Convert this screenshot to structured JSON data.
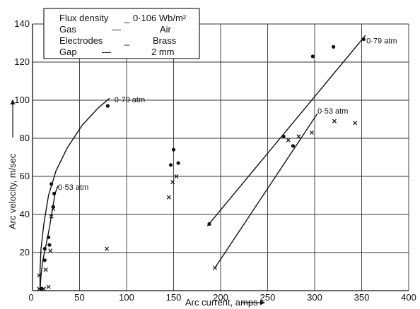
{
  "chart_data": {
    "type": "scatter",
    "xlabel": "Arc current, amps",
    "ylabel": "Arc velocity, m/sec",
    "xlim": [
      0,
      400
    ],
    "ylim": [
      0,
      140
    ],
    "xticks": [
      "0",
      "50",
      "100",
      "150",
      "200",
      "250",
      "300",
      "350",
      "400"
    ],
    "yticks": [
      "20",
      "40",
      "60",
      "80",
      "100",
      "120",
      "140"
    ],
    "grid": true,
    "legend_box": {
      "rows": [
        {
          "label": "Flux density",
          "sep": "_",
          "value": "0·106 Wb/m²"
        },
        {
          "label": "Gas",
          "sep": "—",
          "value": "Air"
        },
        {
          "label": "Electrodes",
          "sep": "_",
          "value": "Brass"
        },
        {
          "label": "Gap",
          "sep": "—",
          "value": "2 mm"
        }
      ]
    },
    "annotations": [
      {
        "text": "0·79 atm",
        "x": 87,
        "y": 100
      },
      {
        "text": "0·53 atm",
        "x": 27,
        "y": 54
      },
      {
        "text": "0·79 atm",
        "x": 355,
        "y": 131
      },
      {
        "text": "0·53 atm",
        "x": 303,
        "y": 94
      }
    ],
    "series": [
      {
        "marker": "dot",
        "points": [
          [
            10,
            1
          ],
          [
            13,
            16
          ],
          [
            13,
            22
          ],
          [
            17,
            28
          ],
          [
            18,
            24
          ],
          [
            20,
            56
          ],
          [
            22,
            44
          ],
          [
            23,
            51
          ],
          [
            80,
            97
          ],
          [
            147,
            66
          ],
          [
            150,
            74
          ],
          [
            155,
            67
          ],
          [
            188,
            35
          ],
          [
            267,
            81
          ],
          [
            277,
            76
          ],
          [
            298,
            123
          ],
          [
            320,
            128
          ],
          [
            352,
            132
          ]
        ]
      },
      {
        "marker": "cross",
        "points": [
          [
            7,
            1
          ],
          [
            7,
            8
          ],
          [
            12,
            1
          ],
          [
            14,
            11
          ],
          [
            17,
            2
          ],
          [
            19,
            21
          ],
          [
            20,
            39
          ],
          [
            22,
            43
          ],
          [
            79,
            22
          ],
          [
            145,
            49
          ],
          [
            149,
            57
          ],
          [
            153,
            60
          ],
          [
            194,
            12
          ],
          [
            272,
            79
          ],
          [
            283,
            81
          ],
          [
            297,
            83
          ],
          [
            321,
            89
          ],
          [
            343,
            88
          ]
        ]
      }
    ],
    "curves": [
      {
        "name": "0·79 atm",
        "points": [
          [
            8,
            0
          ],
          [
            8,
            10
          ],
          [
            9,
            22
          ],
          [
            12,
            35
          ],
          [
            17,
            50
          ],
          [
            25,
            63
          ],
          [
            37,
            75
          ],
          [
            53,
            87
          ],
          [
            70,
            96
          ],
          [
            82,
            101
          ]
        ]
      },
      {
        "name": "0·53 atm",
        "points": [
          [
            8,
            0
          ],
          [
            9,
            8
          ],
          [
            11,
            16
          ],
          [
            14,
            23
          ],
          [
            18,
            33
          ],
          [
            21,
            42
          ],
          [
            24,
            51
          ],
          [
            27,
            55
          ]
        ]
      },
      {
        "name": "0·79 atm",
        "points": [
          [
            186,
            34
          ],
          [
            354,
            134
          ]
        ]
      },
      {
        "name": "0·53 atm",
        "points": [
          [
            194,
            12
          ],
          [
            303,
            93
          ]
        ]
      }
    ]
  }
}
